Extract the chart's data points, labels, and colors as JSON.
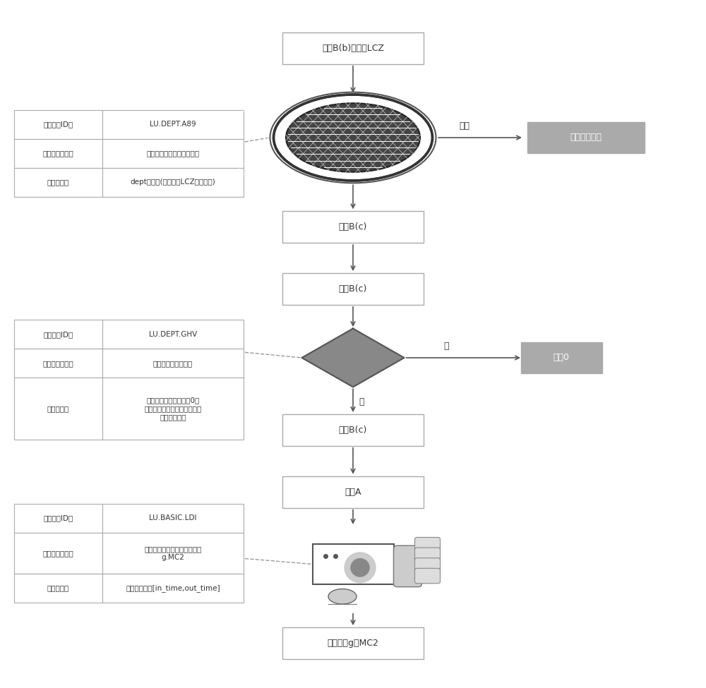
{
  "bg_color": "#ffffff",
  "box_edge_color": "#aaaaaa",
  "gray_box_color": "#aaaaaa",
  "arrow_color": "#555555",
  "text_color": "#333333",
  "top_box_text": "输入B(b)、参数LCZ",
  "out_c_text": "输出B(c)",
  "in_c_text": "输入B(c)",
  "in_a_text": "输入A",
  "out_mc2_text": "输出参数g．MC2",
  "right_filter_text": "被过滤的数据",
  "right_return_text": "返回0",
  "filter_label": "过滤",
  "no_label": "否",
  "yes_label": "是",
  "table1_rows": [
    [
      "逻辑单元ID：",
      "LU.DEPT.A89"
    ],
    [
      "逻辑单元作用：",
      "过滤非对应科室的转科记录"
    ],
    [
      "逻辑条件：",
      "dept不属于(科室参数LCZ的参数値)"
    ]
  ],
  "table2_rows": [
    [
      "逻辑单元ID：",
      "LU.DEPT.GHV"
    ],
    [
      "逻辑单元作用：",
      "判断是否有转科记录"
    ],
    [
      "逻辑条件：",
      "若没有转科记录，输出0；\n若有转科记录，继续下一个逻\n辑单元的判断"
    ]
  ],
  "table3_rows": [
    [
      "逻辑单元ID：",
      "LU.BASIC.LDI"
    ],
    [
      "逻辑单元作用：",
      "摘取入、出院时间构建的参数\ng.MC2"
    ],
    [
      "逻辑条件：",
      "参数値的形式[in_time,out_time]"
    ]
  ]
}
